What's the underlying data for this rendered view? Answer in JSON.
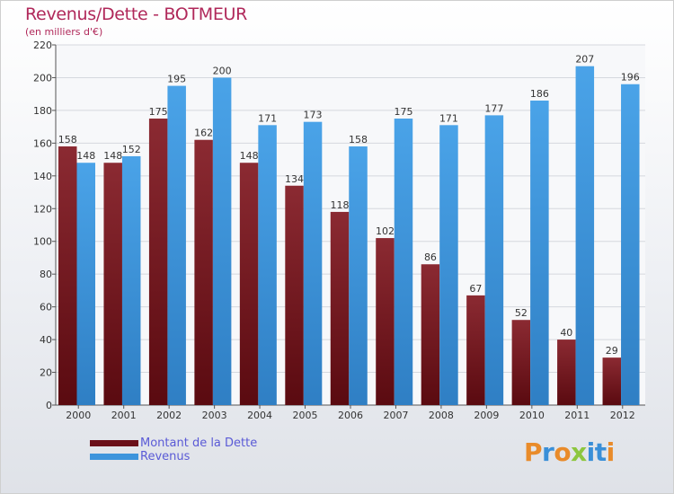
{
  "chart_data": {
    "type": "bar",
    "title": "Revenus/Dette - BOTMEUR",
    "subtitle": "(en milliers d'€)",
    "categories": [
      "2000",
      "2001",
      "2002",
      "2003",
      "2004",
      "2005",
      "2006",
      "2007",
      "2008",
      "2009",
      "2010",
      "2011",
      "2012"
    ],
    "series": [
      {
        "name": "Montant de la Dette",
        "values": [
          158,
          148,
          175,
          162,
          148,
          134,
          118,
          102,
          86,
          67,
          52,
          40,
          29
        ],
        "color": "#7a1a22"
      },
      {
        "name": "Revenus",
        "values": [
          148,
          152,
          195,
          200,
          171,
          173,
          158,
          175,
          171,
          177,
          186,
          207,
          196
        ],
        "color": "#3d94dc"
      }
    ],
    "ylim": [
      0,
      220
    ],
    "yticks": [
      0,
      20,
      40,
      60,
      80,
      100,
      120,
      140,
      160,
      180,
      200,
      220
    ],
    "grid": true,
    "legend": "bottom-left"
  },
  "logo": {
    "letters": [
      "P",
      "r",
      "o",
      "x",
      "i",
      "t",
      "i"
    ],
    "colors": [
      "#e98b2a",
      "#3a8fd8",
      "#e98b2a",
      "#8dc63f",
      "#3a8fd8",
      "#3a8fd8",
      "#e98b2a"
    ]
  }
}
